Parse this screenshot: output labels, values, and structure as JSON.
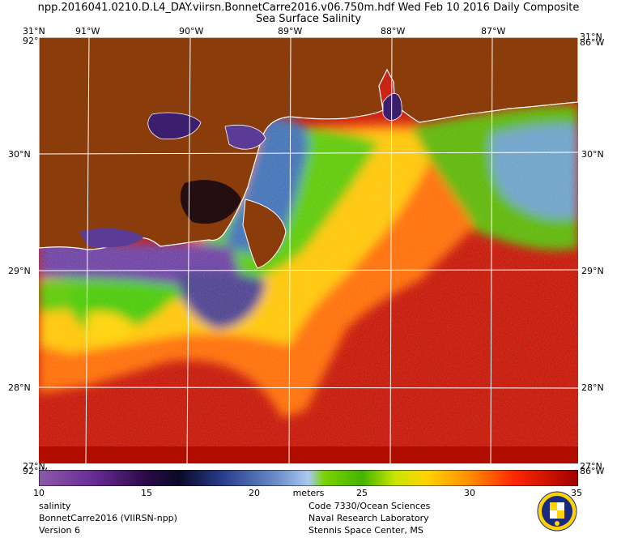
{
  "header": {
    "title": "npp.2016041.0210.D.L4_DAY.viirsn.BonnetCarre2016.v06.750m.hdf    Wed Feb 10 2016 Daily Composite",
    "subtitle": "Sea Surface Salinity"
  },
  "map": {
    "lon_labels": [
      "91°W",
      "90°W",
      "89°W",
      "88°W",
      "87°W"
    ],
    "lat_labels": [
      "30°N",
      "29°N",
      "28°N"
    ],
    "corner_top_left": "31°N",
    "corner_top_right": "31°N",
    "corner_lon_left": "92°W",
    "corner_lon_right": "86°W",
    "corner_bottom_left": "27°N",
    "corner_bottom_right": "27°N",
    "colors": {
      "land": "#8a3c0a",
      "coast": "#ffffff",
      "grid": "#ffffff"
    }
  },
  "colorbar": {
    "ticks": [
      "10",
      "15",
      "20",
      "25",
      "30",
      "35"
    ],
    "unit": "meters"
  },
  "footer": {
    "left": [
      "salinity",
      "BonnetCarre2016 (VIIRSN-npp)",
      "Version 6"
    ],
    "right": [
      "Code 7330/Ocean Sciences",
      "Naval Research Laboratory",
      "Stennis Space Center, MS"
    ]
  }
}
